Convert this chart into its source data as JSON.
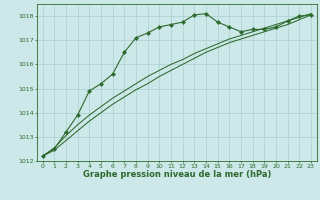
{
  "x": [
    0,
    1,
    2,
    3,
    4,
    5,
    6,
    7,
    8,
    9,
    10,
    11,
    12,
    13,
    14,
    15,
    16,
    17,
    18,
    19,
    20,
    21,
    22,
    23
  ],
  "line1": [
    1012.2,
    1012.5,
    1013.2,
    1013.9,
    1014.9,
    1015.2,
    1015.6,
    1016.5,
    1017.1,
    1017.3,
    1017.55,
    1017.65,
    1017.75,
    1018.05,
    1018.1,
    1017.75,
    1017.55,
    1017.35,
    1017.45,
    1017.45,
    1017.55,
    1017.8,
    1018.0,
    1018.05
  ],
  "line2": [
    1012.2,
    1012.45,
    1012.85,
    1013.25,
    1013.65,
    1014.0,
    1014.35,
    1014.65,
    1014.95,
    1015.2,
    1015.5,
    1015.75,
    1016.0,
    1016.25,
    1016.5,
    1016.7,
    1016.9,
    1017.05,
    1017.2,
    1017.35,
    1017.5,
    1017.65,
    1017.85,
    1018.05
  ],
  "line3": [
    1012.2,
    1012.55,
    1013.05,
    1013.5,
    1013.9,
    1014.25,
    1014.6,
    1014.9,
    1015.2,
    1015.5,
    1015.75,
    1016.0,
    1016.2,
    1016.45,
    1016.65,
    1016.85,
    1017.05,
    1017.2,
    1017.35,
    1017.5,
    1017.65,
    1017.8,
    1017.95,
    1018.1
  ],
  "ylim": [
    1012,
    1018.5
  ],
  "yticks": [
    1012,
    1013,
    1014,
    1015,
    1016,
    1017,
    1018
  ],
  "xticks": [
    0,
    1,
    2,
    3,
    4,
    5,
    6,
    7,
    8,
    9,
    10,
    11,
    12,
    13,
    14,
    15,
    16,
    17,
    18,
    19,
    20,
    21,
    22,
    23
  ],
  "xlabel": "Graphe pression niveau de la mer (hPa)",
  "line_color": "#2d6a2d",
  "bg_color": "#cce8e8",
  "grid_color": "#aacfcf",
  "tick_color": "#2d6a2d",
  "label_color": "#2d6a2d",
  "marker": "D",
  "marker_size": 2.2,
  "tick_fontsize": 4.5,
  "xlabel_fontsize": 6.0
}
